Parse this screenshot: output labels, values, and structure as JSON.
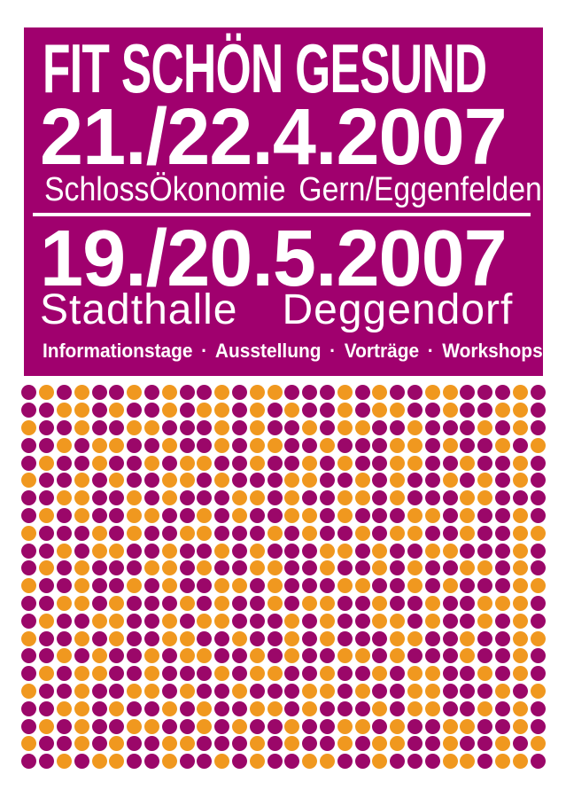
{
  "poster": {
    "title": "FIT SCHÖN GESUND",
    "event1": {
      "date": "21./22.4.2007",
      "venue": "SchlossÖkonomie Gern/Eggenfelden"
    },
    "event2": {
      "date": "19./20.5.2007",
      "venue": "Stadthalle",
      "city": "Deggendorf"
    },
    "tagline": {
      "items": [
        "Informationstage",
        "Ausstellung",
        "Vorträge",
        "Workshops"
      ],
      "separator": "·",
      "text": "Informationstage · Ausstellung · Vorträge · Workshops"
    },
    "colors": {
      "background": "#ffffff",
      "block": "#a0006e",
      "text": "#ffffff",
      "dot_magenta": "#9b0769",
      "dot_orange": "#f0981f"
    }
  },
  "dot_grid": {
    "rows": 22,
    "cols": 30,
    "palette": {
      "m": "#9b0769",
      "o": "#f0981f"
    },
    "pattern": [
      "momommomommomoommmomommoommmom",
      "mmoomommomoomomommomoommommoom",
      "ommommoommmomommomoommommmomom",
      "mmomoommommomoommommmoomommomo",
      "mommommomoommommomommoommommom",
      "ommomommoomommmoommomommomomom",
      "mmoommomommmoomommoomommmoommm",
      "momommoommomommoomommmoomommom",
      "ommmomommoommmomommomoommommoo",
      "mmomoommommomommmoomommoommmom",
      "momommmoomommoommommomommoomom",
      "ommommomommoomommmoommomommmoo",
      "mmoomommmomommomoommommommooom",
      "mommoommomoommmomommoomommomom",
      "ommomommoommommomommmoommommoo",
      "mmomommomoommomommoomommmommom",
      "momoommommmomoommommomoommomom",
      "ommommoomommommmoomommoommmomo",
      "mmoomommomommoomommmomoommomom",
      "momommoommomommommoomommoommom",
      "ommomommoommmomommomoommommomo",
      "mmomoommommomommoommommmoomoom"
    ]
  }
}
